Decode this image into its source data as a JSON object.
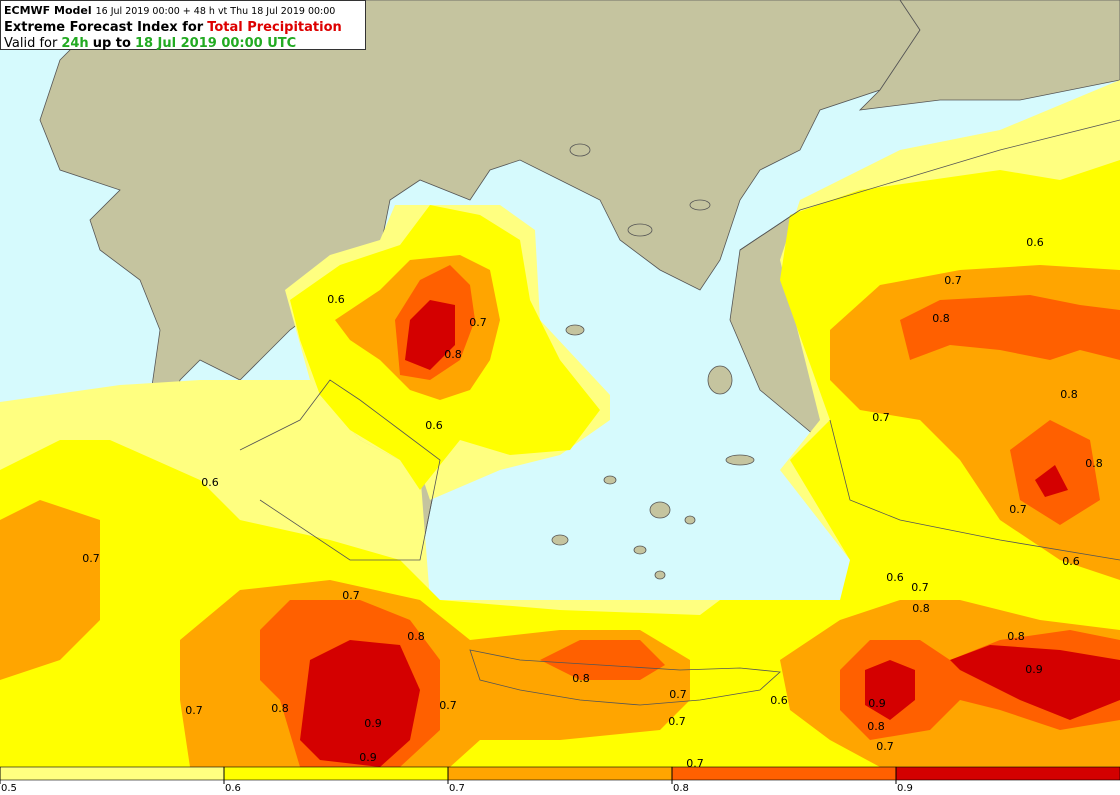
{
  "header": {
    "model": "ECMWF Model",
    "run": "16 Jul 2019 00:00 + 48 h vt Thu 18 Jul 2019 00:00",
    "product": "Extreme Forecast Index for",
    "parameter": "Total Precipitation",
    "valid_prefix": "Valid for",
    "period": "24h",
    "valid_mid": "up to",
    "valid_time": "18 Jul 2019 00:00 UTC"
  },
  "map": {
    "contour_labels": [
      0.6,
      0.7,
      0.8,
      0.6,
      0.7,
      0.8,
      0.8,
      0.7,
      0.6,
      0.8,
      0.6,
      0.7,
      0.7,
      0.6,
      0.6,
      0.7,
      0.8,
      0.7,
      0.8,
      0.8,
      0.9,
      0.8,
      0.7,
      0.6,
      0.9,
      0.7,
      0.8,
      0.7,
      0.9,
      0.7,
      0.8,
      0.7,
      0.9,
      0.7
    ]
  },
  "colorbar": {
    "levels": [
      0.5,
      0.6,
      0.7,
      0.8,
      0.9,
      1.0
    ],
    "ticks": [
      0.5,
      0.6,
      0.7,
      0.8,
      0.9
    ],
    "colors": [
      "#ffff80",
      "#ffff00",
      "#ffa500",
      "#ff6000",
      "#d40000"
    ]
  }
}
